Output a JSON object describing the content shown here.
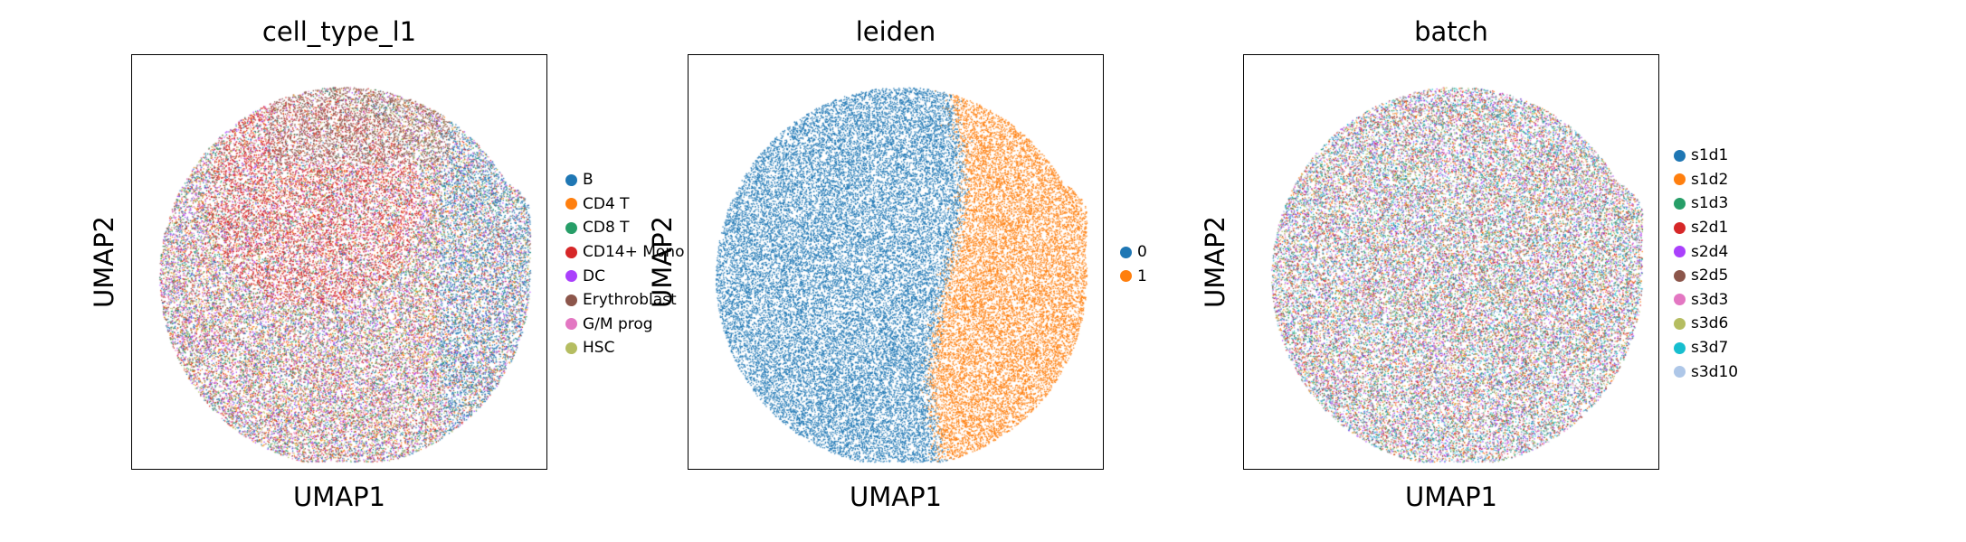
{
  "chart_data": [
    {
      "type": "scatter",
      "title": "cell_type_l1",
      "xlabel": "UMAP1",
      "ylabel": "UMAP2",
      "grid": false,
      "ticks": false,
      "legend_position": "right",
      "categories": [
        "B",
        "CD4 T",
        "CD8 T",
        "CD14+ Mono",
        "DC",
        "Erythroblast",
        "G/M prog",
        "HSC"
      ],
      "colors": [
        "#1f77b4",
        "#ff7f0e",
        "#279e68",
        "#d62728",
        "#aa40fc",
        "#8c564b",
        "#e377c2",
        "#b5bd61"
      ]
    },
    {
      "type": "scatter",
      "title": "leiden",
      "xlabel": "UMAP1",
      "ylabel": "UMAP2",
      "grid": false,
      "ticks": false,
      "legend_position": "right",
      "categories": [
        "0",
        "1"
      ],
      "colors": [
        "#1f77b4",
        "#ff7f0e"
      ]
    },
    {
      "type": "scatter",
      "title": "batch",
      "xlabel": "UMAP1",
      "ylabel": "UMAP2",
      "grid": false,
      "ticks": false,
      "legend_position": "right",
      "categories": [
        "s1d1",
        "s1d2",
        "s1d3",
        "s2d1",
        "s2d4",
        "s2d5",
        "s3d3",
        "s3d6",
        "s3d7",
        "s3d10"
      ],
      "colors": [
        "#1f77b4",
        "#ff7f0e",
        "#279e68",
        "#d62728",
        "#aa40fc",
        "#8c564b",
        "#e377c2",
        "#b5bd61",
        "#17becf",
        "#aec7e8"
      ]
    }
  ]
}
